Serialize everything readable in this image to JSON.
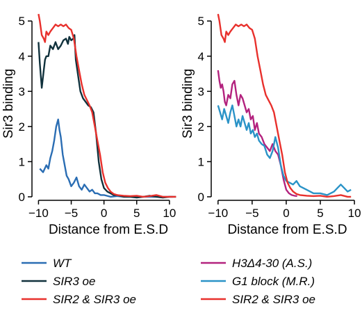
{
  "chart_data": [
    {
      "type": "line",
      "xlabel": "Distance from E.S.D",
      "ylabel": "Sir3 binding",
      "xlim": [
        -11,
        11.5
      ],
      "ylim": [
        -0.1,
        5.4
      ],
      "xticks": [
        -10,
        -5,
        0,
        5,
        10
      ],
      "xtick_labels": [
        "−10",
        "−5",
        "0",
        "5",
        "10"
      ],
      "yticks": [
        0,
        1,
        2,
        3,
        4,
        5
      ],
      "ytick_labels": [
        "0",
        "1",
        "2",
        "3",
        "4",
        "5"
      ],
      "grid": false,
      "legend_position": "bottom",
      "series": [
        {
          "name": "WT",
          "color": "#2a6db3",
          "x": [
            -9.8,
            -9.3,
            -8.8,
            -8.5,
            -8.2,
            -7.9,
            -7.6,
            -7.3,
            -7.0,
            -6.8,
            -6.6,
            -6.3,
            -6.0,
            -5.7,
            -5.4,
            -5.0,
            -4.6,
            -4.2,
            -3.8,
            -3.4,
            -3.0,
            -2.6,
            -2.2,
            -1.8,
            -1.4,
            -1.0,
            -0.5,
            0,
            1,
            2,
            3,
            5,
            7,
            9,
            10.5
          ],
          "y": [
            0.8,
            0.7,
            0.9,
            0.8,
            1.1,
            1.3,
            1.6,
            2.0,
            2.2,
            1.9,
            1.7,
            1.2,
            0.9,
            0.6,
            0.5,
            0.3,
            0.4,
            0.55,
            0.3,
            0.2,
            0.35,
            0.25,
            0.15,
            0.2,
            0.1,
            0.1,
            0.05,
            0.05,
            0.0,
            0.02,
            0.0,
            0.0,
            0.0,
            0.0,
            0.0
          ]
        },
        {
          "name": "SIR3 oe",
          "color": "#10313c",
          "x": [
            -10.0,
            -9.8,
            -9.5,
            -9.2,
            -9.0,
            -8.8,
            -8.5,
            -8.2,
            -7.8,
            -7.4,
            -7.0,
            -6.6,
            -6.2,
            -5.8,
            -5.5,
            -5.3,
            -5.0,
            -4.7,
            -4.5,
            -4.3,
            -4.0,
            -3.6,
            -3.2,
            -2.8,
            -2.4,
            -2.0,
            -1.6,
            -1.2,
            -0.8,
            -0.4,
            0.0,
            0.5,
            1.0,
            1.5,
            2.0,
            3.0,
            4.0,
            5.0,
            6.0,
            7.0,
            8.0,
            9.0,
            10.0,
            11.0
          ],
          "y": [
            4.4,
            3.8,
            3.1,
            3.6,
            3.9,
            4.0,
            4.0,
            4.3,
            4.2,
            4.4,
            4.2,
            4.3,
            4.45,
            4.5,
            4.35,
            4.55,
            4.45,
            4.5,
            4.6,
            3.9,
            3.5,
            3.0,
            2.8,
            2.7,
            2.6,
            2.55,
            2.4,
            1.8,
            1.0,
            0.5,
            0.25,
            0.15,
            0.1,
            0.05,
            0.05,
            0.0,
            0.0,
            -0.02,
            0.0,
            0.03,
            0.0,
            -0.02,
            0.0,
            0.0
          ]
        },
        {
          "name": "SIR2 & SIR3 oe",
          "color": "#e8302c",
          "x": [
            -10.0,
            -9.8,
            -9.5,
            -9.2,
            -9.0,
            -8.8,
            -8.5,
            -8.2,
            -7.8,
            -7.4,
            -7.0,
            -6.6,
            -6.2,
            -5.8,
            -5.4,
            -5.0,
            -4.6,
            -4.2,
            -3.8,
            -3.4,
            -3.0,
            -2.6,
            -2.2,
            -1.8,
            -1.4,
            -1.0,
            -0.6,
            -0.2,
            0.2,
            0.6,
            1.0,
            1.5,
            2.0,
            3.0,
            4.0,
            5.0,
            6.0,
            7.0,
            8.0,
            9.0,
            10.0,
            11.0
          ],
          "y": [
            5.2,
            5.0,
            4.6,
            4.5,
            4.4,
            4.7,
            4.6,
            4.7,
            4.8,
            4.9,
            4.85,
            4.9,
            4.85,
            4.9,
            4.8,
            4.75,
            4.5,
            4.0,
            3.6,
            3.2,
            2.9,
            2.75,
            2.6,
            2.4,
            2.0,
            1.6,
            1.2,
            0.7,
            0.4,
            0.25,
            0.15,
            0.08,
            0.05,
            0.03,
            0.02,
            0.03,
            0.0,
            0.02,
            0.05,
            0.0,
            0.0,
            0.0
          ]
        }
      ]
    },
    {
      "type": "line",
      "xlabel": "Distance from E.S.D",
      "ylabel": "Sir3 binding",
      "xlim": [
        -11,
        10.5
      ],
      "ylim": [
        -0.1,
        5.4
      ],
      "xticks": [
        -10,
        -5,
        0,
        5,
        10
      ],
      "xtick_labels": [
        "−10",
        "−5",
        "0",
        "5",
        "10"
      ],
      "yticks": [
        0,
        1,
        2,
        3,
        4,
        5
      ],
      "ytick_labels": [
        "0",
        "1",
        "2",
        "3",
        "4",
        "5"
      ],
      "grid": false,
      "legend_position": "bottom",
      "series": [
        {
          "name": "H3Δ4-30 (A.S.)",
          "color": "#b3227e",
          "x": [
            -10.0,
            -9.8,
            -9.6,
            -9.4,
            -9.2,
            -9.0,
            -8.8,
            -8.5,
            -8.2,
            -7.9,
            -7.6,
            -7.3,
            -7.0,
            -6.7,
            -6.4,
            -6.1,
            -5.8,
            -5.5,
            -5.2,
            -4.9,
            -4.6,
            -4.3,
            -4.0,
            -3.6,
            -3.2,
            -2.8,
            -2.4,
            -2.0,
            -1.6,
            -1.2,
            -0.8,
            -0.4,
            0.0,
            0.4,
            0.8,
            1.2,
            1.6
          ],
          "y": [
            3.6,
            3.3,
            3.1,
            3.2,
            3.0,
            2.7,
            2.6,
            2.9,
            2.8,
            3.2,
            3.3,
            2.9,
            2.6,
            2.9,
            2.8,
            2.6,
            2.4,
            2.5,
            2.2,
            2.3,
            1.9,
            2.1,
            1.8,
            1.7,
            1.5,
            1.4,
            1.3,
            1.5,
            1.3,
            1.2,
            0.9,
            0.5,
            0.2,
            0.1,
            0.05,
            0.03,
            0.02
          ]
        },
        {
          "name": "G1 block (M.R.)",
          "color": "#2a93c7",
          "x": [
            -10.0,
            -9.7,
            -9.4,
            -9.1,
            -8.8,
            -8.5,
            -8.2,
            -7.9,
            -7.6,
            -7.3,
            -7.0,
            -6.7,
            -6.4,
            -6.1,
            -5.8,
            -5.5,
            -5.2,
            -4.9,
            -4.6,
            -4.3,
            -4.0,
            -3.6,
            -3.2,
            -2.8,
            -2.4,
            -2.0,
            -1.6,
            -1.2,
            -0.8,
            -0.4,
            0.0,
            0.5,
            1.0,
            1.5,
            2.0,
            3.0,
            4.0,
            5.0,
            6.0,
            7.0,
            7.5,
            8.0,
            8.5,
            9.0,
            9.5
          ],
          "y": [
            2.6,
            2.4,
            2.2,
            2.5,
            2.3,
            2.1,
            2.4,
            2.6,
            2.3,
            2.0,
            2.2,
            2.0,
            2.3,
            2.1,
            1.9,
            2.1,
            1.8,
            1.9,
            1.7,
            1.8,
            1.6,
            1.5,
            1.45,
            1.2,
            1.1,
            1.3,
            1.7,
            1.4,
            0.9,
            0.6,
            0.45,
            0.4,
            0.35,
            0.45,
            0.3,
            0.2,
            0.1,
            0.1,
            0.05,
            0.15,
            0.25,
            0.35,
            0.25,
            0.15,
            0.2
          ]
        },
        {
          "name": "SIR2 & SIR3 oe",
          "color": "#e8302c",
          "x": [
            -10.0,
            -9.8,
            -9.5,
            -9.2,
            -9.0,
            -8.8,
            -8.5,
            -8.2,
            -7.8,
            -7.4,
            -7.0,
            -6.6,
            -6.2,
            -5.8,
            -5.4,
            -5.0,
            -4.6,
            -4.2,
            -3.8,
            -3.4,
            -3.0,
            -2.6,
            -2.2,
            -1.8,
            -1.4,
            -1.0,
            -0.6,
            -0.2,
            0.2,
            0.6,
            1.0,
            1.5,
            2.0,
            3.0,
            4.0,
            5.0,
            6.0,
            7.0,
            8.0,
            9.0,
            9.5
          ],
          "y": [
            5.2,
            5.0,
            4.6,
            4.5,
            4.4,
            4.7,
            4.6,
            4.7,
            4.8,
            4.9,
            4.85,
            4.9,
            4.85,
            4.9,
            4.8,
            4.75,
            4.5,
            4.0,
            3.6,
            3.2,
            2.9,
            2.75,
            2.6,
            2.4,
            2.0,
            1.6,
            1.2,
            0.7,
            0.4,
            0.25,
            0.15,
            0.08,
            0.05,
            0.03,
            0.02,
            0.03,
            0.0,
            0.02,
            0.05,
            0.0,
            0.0
          ]
        }
      ]
    }
  ]
}
